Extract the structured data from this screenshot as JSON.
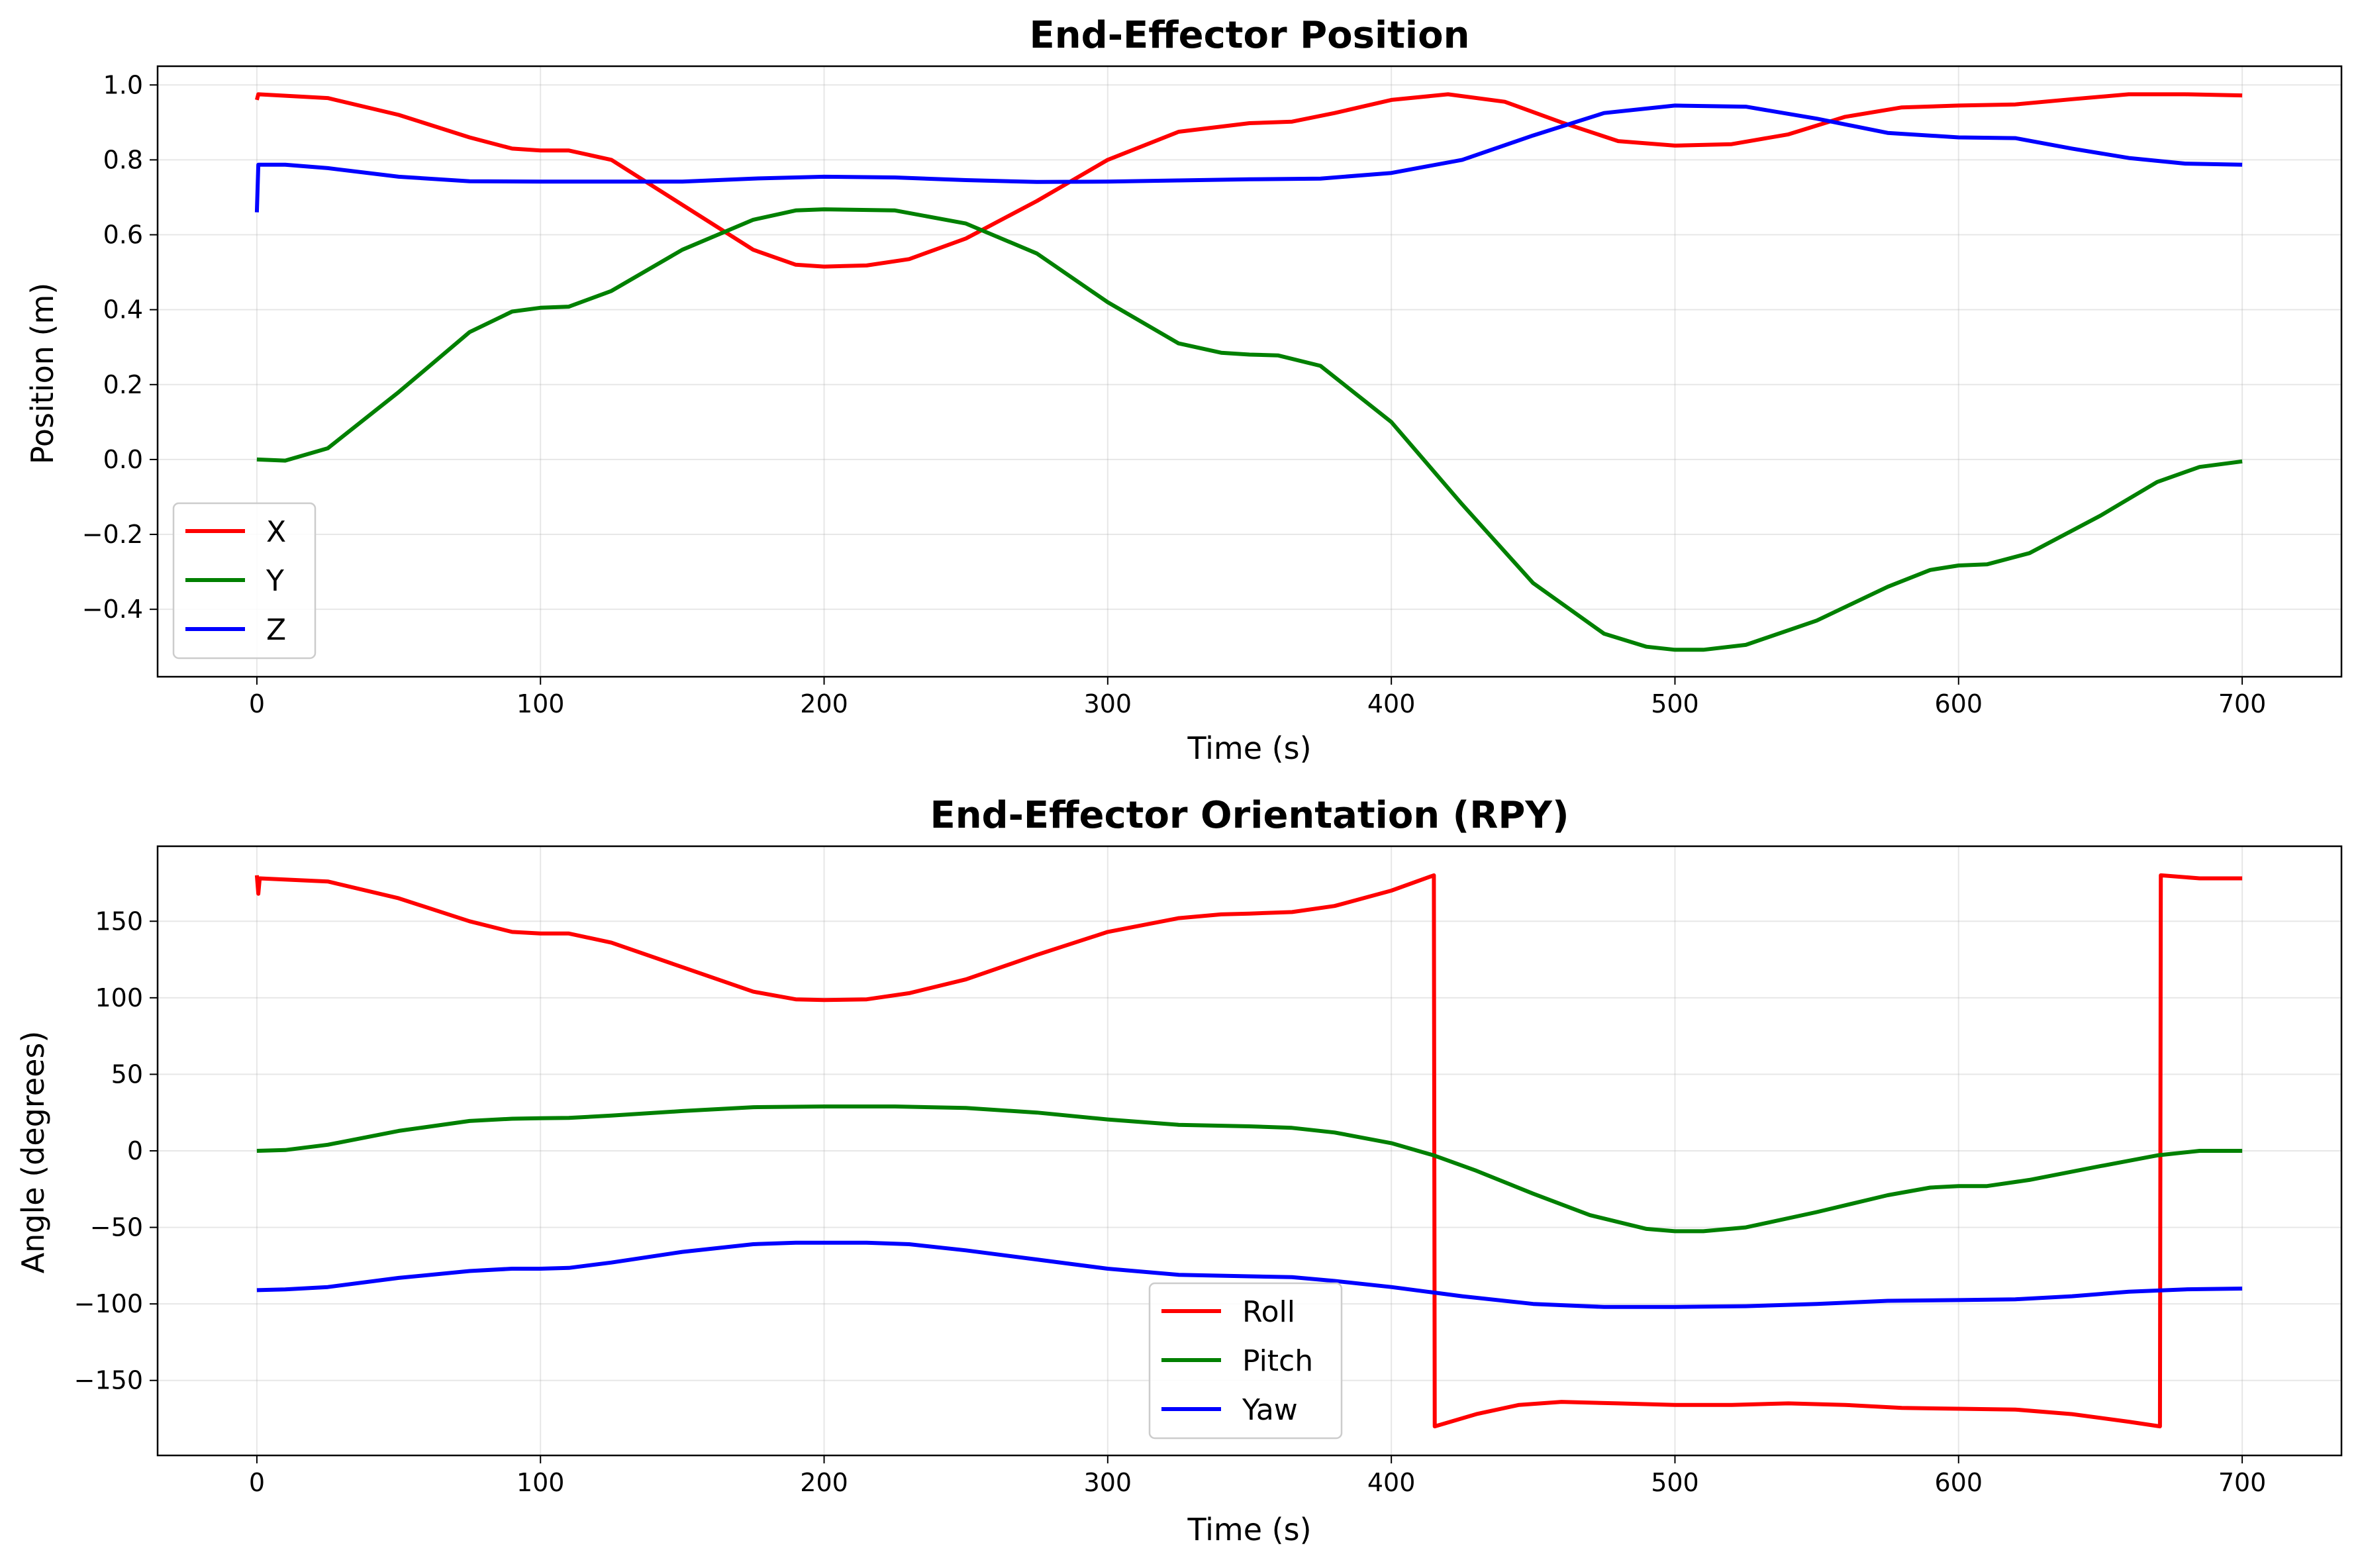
{
  "chart_data": [
    {
      "type": "line",
      "title": "End-Effector Position",
      "xlabel": "Time (s)",
      "ylabel": "Position (m)",
      "xlim": [
        -35,
        735
      ],
      "ylim": [
        -0.58,
        1.05
      ],
      "xticks": [
        0,
        100,
        200,
        300,
        400,
        500,
        600,
        700
      ],
      "yticks": [
        -0.4,
        -0.2,
        0.0,
        0.2,
        0.4,
        0.6,
        0.8,
        1.0
      ],
      "ytick_labels": [
        "−0.4",
        "−0.2",
        "0.0",
        "0.2",
        "0.4",
        "0.6",
        "0.8",
        "1.0"
      ],
      "grid": true,
      "legend": "lower-left",
      "series": [
        {
          "name": "X",
          "color": "#ff0000",
          "points": [
            [
              0,
              0.96
            ],
            [
              0.5,
              0.975
            ],
            [
              25,
              0.965
            ],
            [
              50,
              0.92
            ],
            [
              75,
              0.86
            ],
            [
              90,
              0.83
            ],
            [
              100,
              0.825
            ],
            [
              110,
              0.825
            ],
            [
              125,
              0.8
            ],
            [
              150,
              0.68
            ],
            [
              175,
              0.56
            ],
            [
              190,
              0.52
            ],
            [
              200,
              0.515
            ],
            [
              215,
              0.518
            ],
            [
              230,
              0.535
            ],
            [
              250,
              0.59
            ],
            [
              275,
              0.69
            ],
            [
              300,
              0.8
            ],
            [
              325,
              0.875
            ],
            [
              350,
              0.898
            ],
            [
              365,
              0.902
            ],
            [
              380,
              0.925
            ],
            [
              400,
              0.96
            ],
            [
              420,
              0.975
            ],
            [
              440,
              0.955
            ],
            [
              460,
              0.9
            ],
            [
              480,
              0.85
            ],
            [
              500,
              0.838
            ],
            [
              520,
              0.842
            ],
            [
              540,
              0.868
            ],
            [
              560,
              0.915
            ],
            [
              580,
              0.94
            ],
            [
              600,
              0.945
            ],
            [
              620,
              0.948
            ],
            [
              640,
              0.962
            ],
            [
              660,
              0.975
            ],
            [
              680,
              0.975
            ],
            [
              700,
              0.972
            ]
          ]
        },
        {
          "name": "Y",
          "color": "#008000",
          "points": [
            [
              0,
              0.0
            ],
            [
              10,
              -0.003
            ],
            [
              25,
              0.03
            ],
            [
              50,
              0.18
            ],
            [
              75,
              0.34
            ],
            [
              90,
              0.395
            ],
            [
              100,
              0.405
            ],
            [
              110,
              0.408
            ],
            [
              125,
              0.45
            ],
            [
              150,
              0.56
            ],
            [
              175,
              0.64
            ],
            [
              190,
              0.665
            ],
            [
              200,
              0.668
            ],
            [
              225,
              0.665
            ],
            [
              250,
              0.63
            ],
            [
              275,
              0.55
            ],
            [
              300,
              0.42
            ],
            [
              325,
              0.31
            ],
            [
              340,
              0.285
            ],
            [
              350,
              0.28
            ],
            [
              360,
              0.278
            ],
            [
              375,
              0.25
            ],
            [
              400,
              0.1
            ],
            [
              425,
              -0.12
            ],
            [
              450,
              -0.33
            ],
            [
              475,
              -0.465
            ],
            [
              490,
              -0.5
            ],
            [
              500,
              -0.508
            ],
            [
              510,
              -0.508
            ],
            [
              525,
              -0.495
            ],
            [
              550,
              -0.43
            ],
            [
              575,
              -0.34
            ],
            [
              590,
              -0.295
            ],
            [
              600,
              -0.283
            ],
            [
              610,
              -0.28
            ],
            [
              625,
              -0.25
            ],
            [
              650,
              -0.15
            ],
            [
              670,
              -0.06
            ],
            [
              685,
              -0.02
            ],
            [
              700,
              -0.005
            ]
          ]
        },
        {
          "name": "Z",
          "color": "#0000ff",
          "points": [
            [
              0,
              0.66
            ],
            [
              0.5,
              0.787
            ],
            [
              10,
              0.787
            ],
            [
              25,
              0.778
            ],
            [
              50,
              0.755
            ],
            [
              75,
              0.743
            ],
            [
              100,
              0.742
            ],
            [
              125,
              0.742
            ],
            [
              150,
              0.742
            ],
            [
              175,
              0.75
            ],
            [
              200,
              0.755
            ],
            [
              225,
              0.753
            ],
            [
              250,
              0.746
            ],
            [
              275,
              0.741
            ],
            [
              300,
              0.742
            ],
            [
              325,
              0.745
            ],
            [
              350,
              0.748
            ],
            [
              375,
              0.75
            ],
            [
              400,
              0.765
            ],
            [
              425,
              0.8
            ],
            [
              450,
              0.865
            ],
            [
              475,
              0.925
            ],
            [
              500,
              0.945
            ],
            [
              525,
              0.942
            ],
            [
              550,
              0.91
            ],
            [
              575,
              0.872
            ],
            [
              600,
              0.86
            ],
            [
              620,
              0.858
            ],
            [
              640,
              0.83
            ],
            [
              660,
              0.805
            ],
            [
              680,
              0.79
            ],
            [
              700,
              0.787
            ]
          ]
        }
      ]
    },
    {
      "type": "line",
      "title": "End-Effector Orientation (RPY)",
      "xlabel": "Time (s)",
      "ylabel": "Angle (degrees)",
      "xlim": [
        -35,
        735
      ],
      "ylim": [
        -199,
        199
      ],
      "xticks": [
        0,
        100,
        200,
        300,
        400,
        500,
        600,
        700
      ],
      "yticks": [
        -150,
        -100,
        -50,
        0,
        50,
        100,
        150
      ],
      "ytick_labels": [
        "−150",
        "−100",
        "−50",
        "0",
        "50",
        "100",
        "150"
      ],
      "grid": true,
      "legend": "lower-center",
      "series": [
        {
          "name": "Roll",
          "color": "#ff0000",
          "points": [
            [
              0,
              180
            ],
            [
              0.5,
              168
            ],
            [
              1,
              178
            ],
            [
              25,
              176
            ],
            [
              50,
              165
            ],
            [
              75,
              150
            ],
            [
              90,
              143
            ],
            [
              100,
              142
            ],
            [
              110,
              142
            ],
            [
              125,
              136
            ],
            [
              150,
              120
            ],
            [
              175,
              104
            ],
            [
              190,
              99
            ],
            [
              200,
              98.5
            ],
            [
              215,
              99
            ],
            [
              230,
              103
            ],
            [
              250,
              112
            ],
            [
              275,
              128
            ],
            [
              300,
              143
            ],
            [
              325,
              152
            ],
            [
              340,
              154.5
            ],
            [
              350,
              155
            ],
            [
              365,
              156
            ],
            [
              380,
              160
            ],
            [
              400,
              170
            ],
            [
              415,
              180
            ],
            [
              415.3,
              -180
            ],
            [
              430,
              -172
            ],
            [
              445,
              -166
            ],
            [
              460,
              -164
            ],
            [
              480,
              -165
            ],
            [
              500,
              -166
            ],
            [
              520,
              -166
            ],
            [
              540,
              -165
            ],
            [
              560,
              -166
            ],
            [
              580,
              -168
            ],
            [
              600,
              -168.5
            ],
            [
              620,
              -169
            ],
            [
              640,
              -172
            ],
            [
              660,
              -177
            ],
            [
              671,
              -180
            ],
            [
              671.3,
              180
            ],
            [
              685,
              178
            ],
            [
              700,
              178
            ]
          ]
        },
        {
          "name": "Pitch",
          "color": "#008000",
          "points": [
            [
              0,
              0
            ],
            [
              10,
              0.5
            ],
            [
              25,
              4
            ],
            [
              50,
              13
            ],
            [
              75,
              19.5
            ],
            [
              90,
              21
            ],
            [
              100,
              21.3
            ],
            [
              110,
              21.5
            ],
            [
              125,
              23
            ],
            [
              150,
              26
            ],
            [
              175,
              28.5
            ],
            [
              200,
              29
            ],
            [
              225,
              29
            ],
            [
              250,
              28
            ],
            [
              275,
              25
            ],
            [
              300,
              20.5
            ],
            [
              325,
              17
            ],
            [
              350,
              16
            ],
            [
              365,
              15
            ],
            [
              380,
              12
            ],
            [
              400,
              5
            ],
            [
              415,
              -3
            ],
            [
              430,
              -13
            ],
            [
              450,
              -28
            ],
            [
              470,
              -42
            ],
            [
              490,
              -51
            ],
            [
              500,
              -52.5
            ],
            [
              510,
              -52.5
            ],
            [
              525,
              -50
            ],
            [
              550,
              -40
            ],
            [
              575,
              -29
            ],
            [
              590,
              -24
            ],
            [
              600,
              -23
            ],
            [
              610,
              -23
            ],
            [
              625,
              -19
            ],
            [
              650,
              -10
            ],
            [
              670,
              -3
            ],
            [
              685,
              0
            ],
            [
              700,
              0
            ]
          ]
        },
        {
          "name": "Yaw",
          "color": "#0000ff",
          "points": [
            [
              0,
              -91
            ],
            [
              10,
              -90.5
            ],
            [
              25,
              -89
            ],
            [
              50,
              -83
            ],
            [
              75,
              -78.5
            ],
            [
              90,
              -77
            ],
            [
              100,
              -77
            ],
            [
              110,
              -76.5
            ],
            [
              125,
              -73
            ],
            [
              150,
              -66
            ],
            [
              175,
              -61
            ],
            [
              190,
              -60
            ],
            [
              200,
              -60
            ],
            [
              215,
              -60
            ],
            [
              230,
              -61
            ],
            [
              250,
              -65
            ],
            [
              275,
              -71
            ],
            [
              300,
              -77
            ],
            [
              325,
              -81
            ],
            [
              350,
              -82
            ],
            [
              365,
              -82.5
            ],
            [
              380,
              -85
            ],
            [
              400,
              -89
            ],
            [
              425,
              -95
            ],
            [
              450,
              -100
            ],
            [
              475,
              -102
            ],
            [
              500,
              -102
            ],
            [
              525,
              -101.5
            ],
            [
              550,
              -100
            ],
            [
              575,
              -98
            ],
            [
              600,
              -97.5
            ],
            [
              620,
              -97
            ],
            [
              640,
              -95
            ],
            [
              660,
              -92
            ],
            [
              680,
              -90.5
            ],
            [
              700,
              -90
            ]
          ]
        }
      ]
    }
  ]
}
